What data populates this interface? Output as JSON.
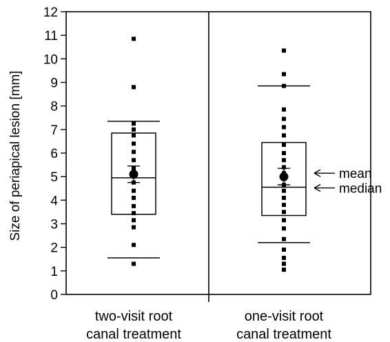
{
  "chart_data": {
    "type": "box",
    "title": "",
    "ylabel": "Size of periapical lesion [mm]",
    "ylim": [
      0,
      12
    ],
    "yticks": [
      0,
      1,
      2,
      3,
      4,
      5,
      6,
      7,
      8,
      9,
      10,
      11,
      12
    ],
    "grid": false,
    "groups": [
      {
        "label_lines": [
          "two-visit root",
          "canal treatment"
        ],
        "whisker_low": 1.55,
        "q1": 3.4,
        "median": 4.95,
        "q3": 6.85,
        "whisker_high": 7.35,
        "mean": 5.1,
        "mean_error_low": 4.75,
        "mean_error_high": 5.45,
        "points": [
          10.85,
          8.8,
          7.25,
          7.0,
          6.75,
          6.4,
          6.05,
          5.7,
          5.35,
          5.05,
          4.75,
          4.4,
          4.1,
          3.75,
          3.45,
          3.15,
          2.85,
          2.1,
          1.3
        ]
      },
      {
        "label_lines": [
          "one-visit root",
          "canal treatment"
        ],
        "whisker_low": 2.2,
        "q1": 3.35,
        "median": 4.55,
        "q3": 6.45,
        "whisker_high": 8.85,
        "mean": 5.0,
        "mean_error_low": 4.65,
        "mean_error_high": 5.35,
        "points": [
          10.35,
          9.35,
          8.85,
          7.85,
          7.45,
          7.1,
          6.75,
          6.35,
          6.0,
          5.7,
          5.4,
          5.15,
          4.9,
          4.65,
          4.4,
          4.1,
          3.8,
          3.5,
          3.15,
          2.8,
          2.35,
          1.9,
          1.55,
          1.3,
          1.05
        ]
      }
    ],
    "annotations": [
      {
        "text": "mean",
        "target": "mean"
      },
      {
        "text": "median",
        "target": "median"
      }
    ]
  }
}
